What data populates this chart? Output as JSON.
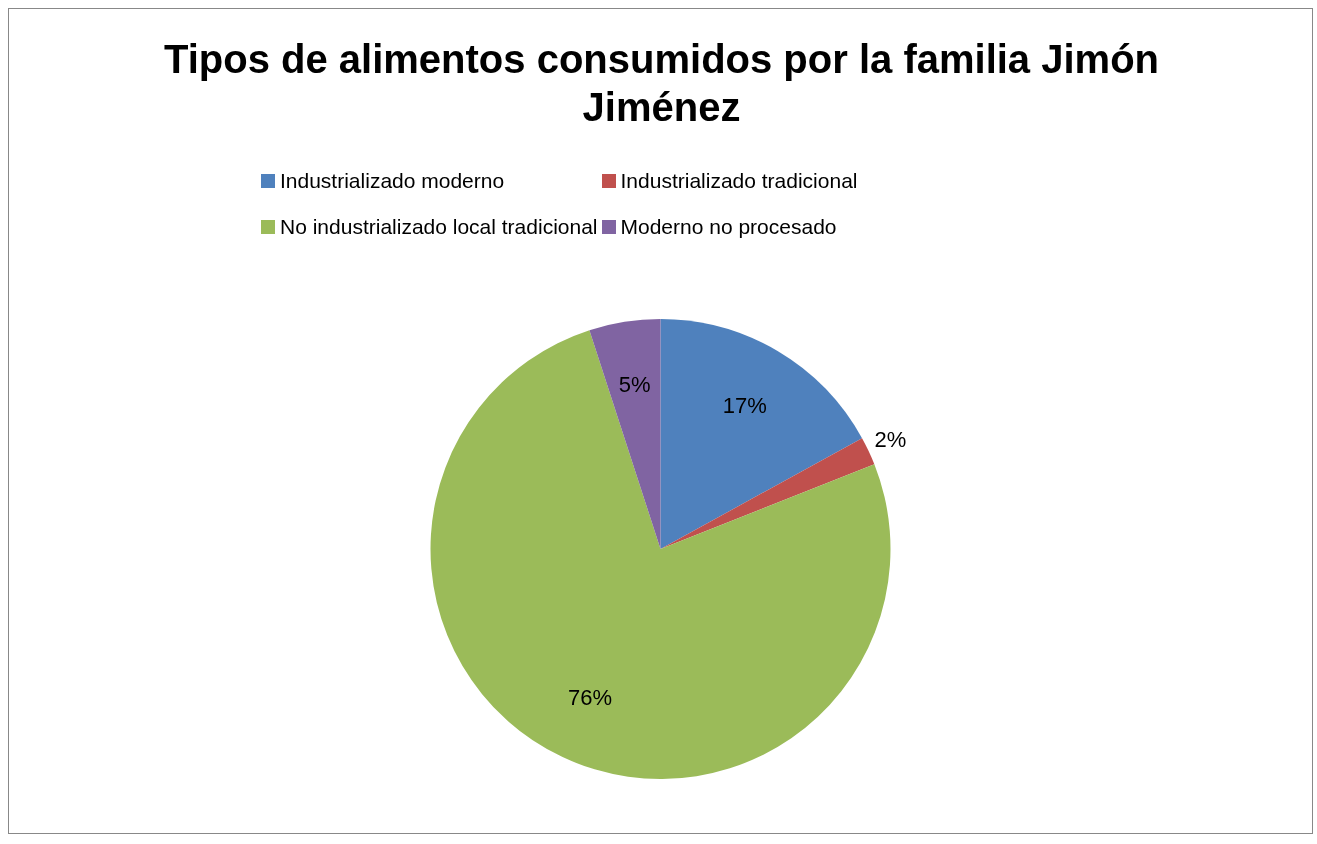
{
  "chart_data": {
    "type": "pie",
    "title": "Tipos de alimentos consumidos por la familia Jimón Jiménez",
    "categories": [
      "Industrializado moderno",
      "Industrializado tradicional",
      "No industrializado local tradicional",
      "Moderno no procesado"
    ],
    "values": [
      17,
      2,
      76,
      5
    ],
    "colors": [
      "#4f81bd",
      "#c0504d",
      "#9bbb59",
      "#8064a2"
    ],
    "value_labels": [
      "17%",
      "2%",
      "76%",
      "5%"
    ],
    "legend": "top"
  }
}
